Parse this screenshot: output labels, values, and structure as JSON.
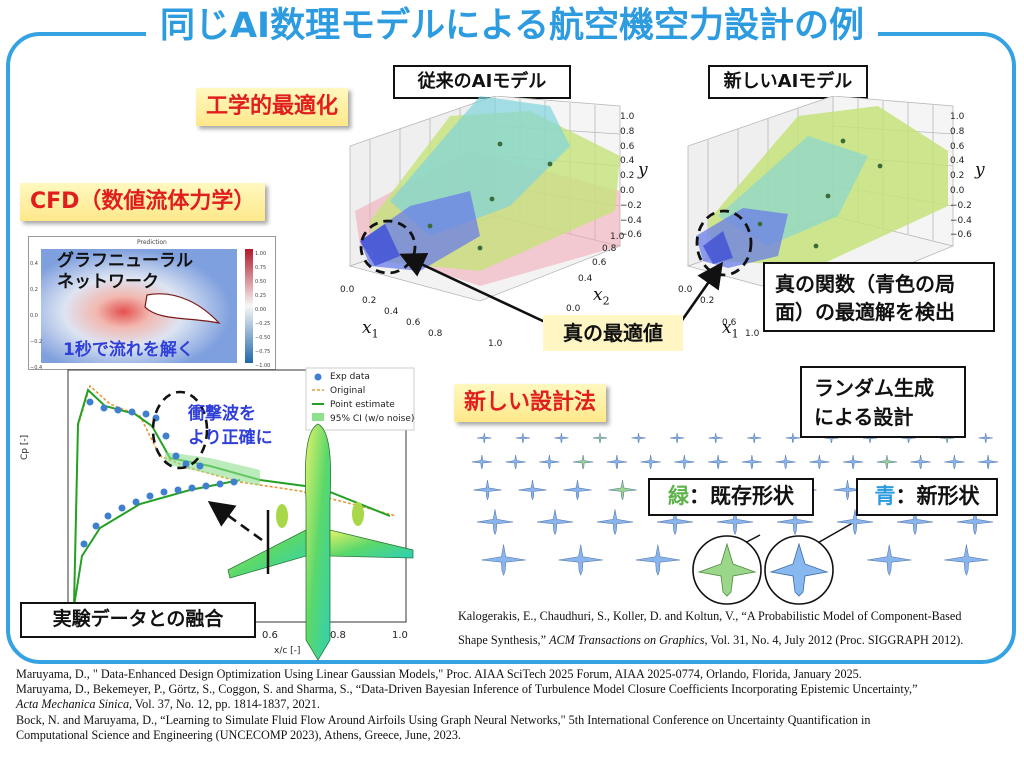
{
  "title": "同じAI数理モデルによる航空機空力設計の例",
  "sections": {
    "optimization": "工学的最適化",
    "cfd": "CFD（数値流体力学）",
    "design": "新しい設計法"
  },
  "models": {
    "conventional": "従来のAIモデル",
    "new": "新しいAIモデル"
  },
  "axes": {
    "y": "y",
    "x1": "x",
    "x1_sub": "1",
    "x2": "x",
    "x2_sub": "2",
    "z_ticks": [
      "1.0",
      "0.8",
      "0.6",
      "0.4",
      "0.2",
      "0.0",
      "−0.2",
      "−0.4",
      "−0.6"
    ],
    "x_ticks": [
      "0.0",
      "0.2",
      "0.4",
      "0.6",
      "0.8",
      "1.0"
    ],
    "y_ticks": [
      "0.0",
      "0.2",
      "0.4",
      "0.6",
      "0.8",
      "1.0"
    ]
  },
  "callouts": {
    "true_optimum": "真の最適値",
    "detect_line1": "真の関数（青色の局",
    "detect_line2": "面）の最適解を検出",
    "gnn_line1": "グラフニューラル",
    "gnn_line2": "ネットワーク",
    "gnn_speed": "1秒で流れを解く",
    "prediction_label": "Prediction",
    "shock_line1": "衝撃波を",
    "shock_line2": "より正確に",
    "fusion": "実験データとの融合",
    "random_line1": "ランダム生成",
    "random_line2": "による設計",
    "green_char": "緑",
    "green_rest": "：既存形状",
    "blue_char": "青",
    "blue_rest": "：新形状"
  },
  "colorbar_ticks": [
    "1.00",
    "0.75",
    "0.50",
    "0.25",
    "0.00",
    "−0.25",
    "−0.50",
    "−0.75",
    "−1.00"
  ],
  "gnn_axis_ticks": [
    "0.4",
    "0.2",
    "0.0",
    "−0.2",
    "−0.4"
  ],
  "cp_chart": {
    "ylabel": "Cp [-]",
    "xlabel": "x/c [-]",
    "x_ticks": [
      "0.6",
      "0.8",
      "1.0"
    ],
    "legend": [
      "Exp data",
      "Original",
      "Point estimate",
      "95% CI (w/o noise)"
    ]
  },
  "colors": {
    "frame": "#35a2e1",
    "title": "#2d9be0",
    "tag_text": "#e01e1e",
    "green_char": "#5db34a",
    "blue_char": "#2d9be0",
    "callout_blue": "#2f3fd8"
  },
  "references": {
    "r1": "Maruyama, D., \" Data-Enhanced Design Optimization Using Linear Gaussian Models,\" Proc. AIAA SciTech 2025 Forum, AIAA 2025-0774, Orlando, Florida, January 2025.",
    "r2": "Maruyama, D., Bekemeyer, P., Görtz, S., Coggon, S. and Sharma, S., “Data-Driven Bayesian Inference of Turbulence Model Closure Coefficients Incorporating Epistemic Uncertainty,”",
    "r3_journal": "Acta Mechanica Sinica",
    "r3_rest": ", Vol. 37, No. 12, pp. 1814-1837, 2021.",
    "r4": "Bock, N. and Maruyama, D., “Learning to Simulate Fluid Flow Around Airfoils Using Graph Neural Networks,\" 5th International Conference on Uncertainty Quantification in",
    "r5": "Computational Science and Engineering (UNCECOMP 2023), Athens, Greece, June, 2023.",
    "k1": "Kalogerakis, E., Chaudhuri, S., Koller, D. and Koltun, V., “A Probabilistic Model of Component-Based",
    "k2_pre": "Shape Synthesis,” ",
    "k2_journal": "ACM Transactions on Graphics",
    "k2_rest": ", Vol. 31, No. 4, July 2012 (Proc. SIGGRAPH 2012)."
  }
}
